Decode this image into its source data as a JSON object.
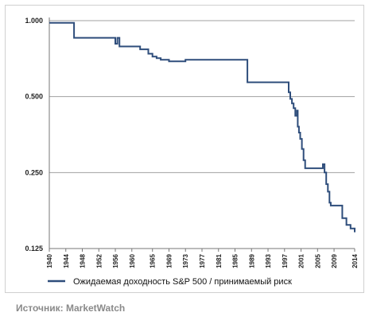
{
  "chart_data": {
    "type": "line",
    "title": "",
    "xlabel": "",
    "ylabel": "",
    "y_scale": "log",
    "ylim": [
      0.125,
      1.0
    ],
    "y_ticks": [
      "1.000",
      "0.500",
      "0.250",
      "0.125"
    ],
    "y_tick_values": [
      1.0,
      0.5,
      0.25,
      0.125
    ],
    "xlim": [
      1940,
      2014
    ],
    "x_ticks": [
      "1940",
      "1944",
      "1948",
      "1952",
      "1956",
      "1960",
      "1965",
      "1969",
      "1973",
      "1977",
      "1981",
      "1985",
      "1989",
      "1993",
      "1997",
      "2001",
      "2005",
      "2009",
      "2014"
    ],
    "x_tick_values": [
      1940,
      1944,
      1948,
      1952,
      1956,
      1960,
      1965,
      1969,
      1973,
      1977,
      1981,
      1985,
      1989,
      1993,
      1997,
      2001,
      2005,
      2009,
      2014
    ],
    "grid": "horizontal",
    "legend_position": "bottom",
    "series": [
      {
        "name": "Ожидаемая доходность S&P 500 / принимаемый риск",
        "color": "#2e4d7b",
        "step": true,
        "x": [
          1940,
          1946,
          1956,
          1956.5,
          1957,
          1957.5,
          1962,
          1964,
          1965,
          1966,
          1967,
          1969,
          1973,
          1974,
          1978,
          1987.5,
          1988,
          1997.8,
          1998,
          1998.4,
          1998.8,
          1999.2,
          1999.6,
          2000,
          2000.2,
          2000.5,
          2000.8,
          2001.2,
          2001.6,
          2002,
          2004,
          2006,
          2006.3,
          2006.7,
          2007.1,
          2007.5,
          2007.9,
          2008.2,
          2010,
          2011,
          2012,
          2013,
          2014
        ],
        "y": [
          0.98,
          0.855,
          0.81,
          0.855,
          0.79,
          0.79,
          0.77,
          0.74,
          0.72,
          0.71,
          0.7,
          0.69,
          0.7,
          0.7,
          0.7,
          0.7,
          0.57,
          0.57,
          0.52,
          0.49,
          0.47,
          0.45,
          0.42,
          0.44,
          0.38,
          0.36,
          0.34,
          0.31,
          0.28,
          0.26,
          0.26,
          0.26,
          0.27,
          0.25,
          0.225,
          0.21,
          0.19,
          0.185,
          0.185,
          0.165,
          0.155,
          0.15,
          0.145
        ]
      }
    ]
  },
  "source": "Источник: MarketWatch"
}
